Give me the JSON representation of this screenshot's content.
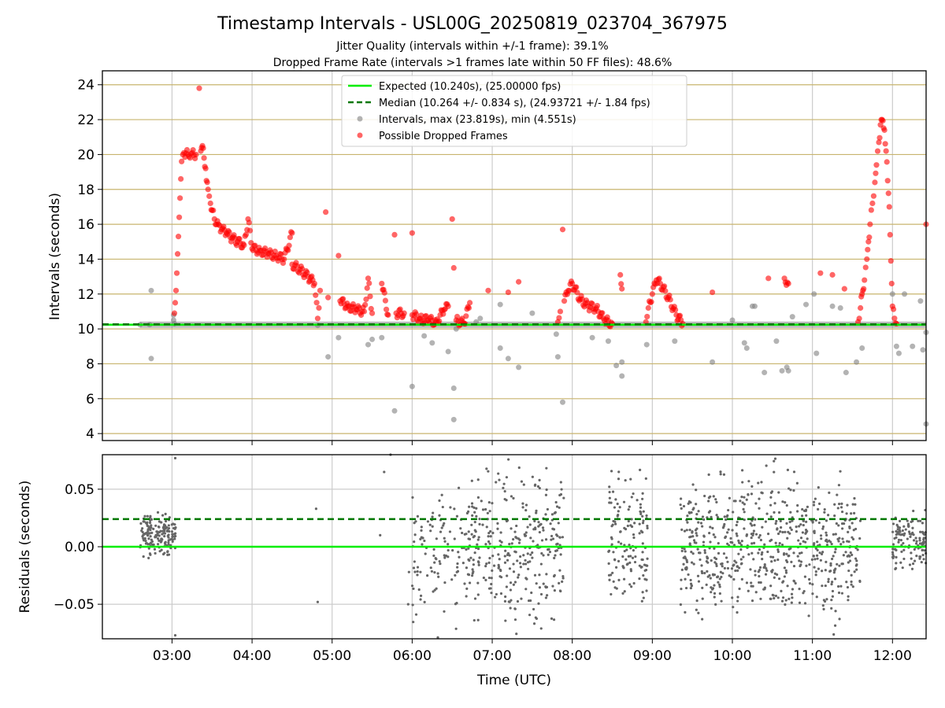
{
  "figure": {
    "title": "Timestamp Intervals - USL00G_20250819_023704_367975",
    "subtitle_1": "Jitter Quality (intervals within +/-1 frame): 39.1%",
    "subtitle_2": "Dropped Frame Rate (intervals >1 frames late within 50 FF files): 48.6%"
  },
  "colors": {
    "expected": "#00ee00",
    "median": "#007700",
    "intervals": "#808080",
    "dropped": "#ff0000",
    "hgrid": "#c8b46e",
    "vgrid": "#cccccc"
  },
  "chart_data": [
    {
      "type": "scatter",
      "xlabel": "",
      "ylabel": "Intervals (seconds)",
      "xlim": [
        2.13,
        12.42
      ],
      "ylim": [
        3.6,
        24.8
      ],
      "x_ticks": [
        3,
        4,
        5,
        6,
        7,
        8,
        9,
        10,
        11,
        12
      ],
      "y_ticks": [
        4,
        6,
        8,
        10,
        12,
        14,
        16,
        18,
        20,
        22,
        24
      ],
      "y_tick_labels": [
        "4",
        "6",
        "8",
        "10",
        "12",
        "14",
        "16",
        "18",
        "20",
        "22",
        "24"
      ],
      "grid": "on",
      "legend_position": "upper-center",
      "legend": [
        "Expected (10.240s), (25.00000 fps)",
        "Median (10.264 +/- 0.834 s), (24.93721 +/- 1.84 fps)",
        "Intervals, max (23.819s), min (4.551s)",
        "Possible Dropped Frames"
      ],
      "reference_lines": {
        "expected": 10.24,
        "median": 10.264
      },
      "baseline_band": {
        "x_range": [
          2.6,
          12.42
        ],
        "y": 10.24
      },
      "series": [
        {
          "name": "Intervals, max (23.819s), min (4.551s)",
          "points": [
            [
              2.6,
              10.24
            ],
            [
              2.72,
              10.24
            ],
            [
              2.74,
              12.2
            ],
            [
              2.74,
              8.3
            ],
            [
              3.02,
              10.8
            ],
            [
              3.02,
              10.5
            ],
            [
              3.03,
              10.3
            ],
            [
              4.82,
              10.2
            ],
            [
              4.95,
              8.4
            ],
            [
              5.08,
              9.5
            ],
            [
              5.45,
              9.1
            ],
            [
              5.5,
              9.4
            ],
            [
              5.62,
              9.5
            ],
            [
              5.78,
              5.3
            ],
            [
              6.0,
              6.7
            ],
            [
              6.15,
              9.6
            ],
            [
              6.25,
              9.2
            ],
            [
              6.45,
              8.7
            ],
            [
              6.52,
              6.6
            ],
            [
              6.52,
              4.8
            ],
            [
              6.55,
              10.0
            ],
            [
              6.8,
              10.4
            ],
            [
              6.85,
              10.6
            ],
            [
              7.1,
              11.4
            ],
            [
              7.1,
              8.9
            ],
            [
              7.2,
              8.3
            ],
            [
              7.33,
              7.8
            ],
            [
              7.5,
              10.9
            ],
            [
              7.8,
              9.7
            ],
            [
              7.82,
              8.4
            ],
            [
              7.88,
              5.8
            ],
            [
              8.25,
              9.5
            ],
            [
              8.45,
              9.3
            ],
            [
              8.55,
              7.9
            ],
            [
              8.62,
              7.3
            ],
            [
              8.62,
              8.1
            ],
            [
              8.93,
              9.1
            ],
            [
              9.28,
              9.3
            ],
            [
              9.75,
              8.1
            ],
            [
              10.0,
              10.5
            ],
            [
              10.15,
              9.2
            ],
            [
              10.18,
              8.9
            ],
            [
              10.25,
              11.3
            ],
            [
              10.28,
              11.3
            ],
            [
              10.4,
              7.5
            ],
            [
              10.55,
              9.3
            ],
            [
              10.62,
              7.6
            ],
            [
              10.68,
              7.8
            ],
            [
              10.7,
              7.6
            ],
            [
              10.75,
              10.7
            ],
            [
              10.92,
              11.4
            ],
            [
              11.02,
              12.0
            ],
            [
              11.05,
              8.6
            ],
            [
              11.25,
              11.3
            ],
            [
              11.35,
              11.2
            ],
            [
              11.42,
              7.5
            ],
            [
              11.55,
              8.1
            ],
            [
              11.62,
              8.9
            ],
            [
              12.0,
              12.0
            ],
            [
              12.05,
              9.0
            ],
            [
              12.08,
              8.6
            ],
            [
              12.15,
              12.0
            ],
            [
              12.25,
              9.0
            ],
            [
              12.35,
              11.6
            ],
            [
              12.38,
              8.8
            ],
            [
              12.42,
              4.55
            ],
            [
              12.42,
              9.8
            ]
          ]
        },
        {
          "name": "Possible Dropped Frames",
          "points": [
            [
              3.03,
              10.9
            ],
            [
              3.04,
              11.5
            ],
            [
              3.05,
              12.2
            ],
            [
              3.06,
              13.2
            ],
            [
              3.07,
              14.3
            ],
            [
              3.08,
              15.3
            ],
            [
              3.09,
              16.4
            ],
            [
              3.1,
              17.5
            ],
            [
              3.11,
              18.6
            ],
            [
              3.12,
              19.6
            ],
            [
              3.15,
              20.1
            ],
            [
              3.2,
              20.0
            ],
            [
              3.25,
              20.1
            ],
            [
              3.3,
              20.0
            ],
            [
              3.34,
              23.8
            ],
            [
              3.36,
              20.2
            ],
            [
              3.38,
              20.5
            ],
            [
              3.4,
              19.8
            ],
            [
              3.42,
              19.2
            ],
            [
              3.43,
              18.5
            ],
            [
              3.45,
              18.0
            ],
            [
              3.48,
              17.2
            ],
            [
              3.5,
              16.8
            ],
            [
              3.53,
              16.3
            ],
            [
              3.58,
              16.0
            ],
            [
              3.62,
              15.7
            ],
            [
              3.68,
              15.5
            ],
            [
              3.75,
              15.2
            ],
            [
              3.82,
              15.0
            ],
            [
              3.9,
              14.8
            ],
            [
              3.95,
              16.3
            ],
            [
              4.0,
              14.6
            ],
            [
              4.1,
              14.5
            ],
            [
              4.2,
              14.3
            ],
            [
              4.3,
              14.2
            ],
            [
              4.4,
              14.0
            ],
            [
              4.5,
              15.5
            ],
            [
              4.5,
              13.7
            ],
            [
              4.6,
              13.4
            ],
            [
              4.7,
              13.0
            ],
            [
              4.78,
              12.6
            ],
            [
              4.82,
              10.6
            ],
            [
              4.85,
              12.2
            ],
            [
              4.92,
              16.7
            ],
            [
              4.95,
              11.8
            ],
            [
              5.08,
              14.2
            ],
            [
              5.1,
              11.6
            ],
            [
              5.2,
              11.3
            ],
            [
              5.3,
              11.1
            ],
            [
              5.4,
              11.0
            ],
            [
              5.45,
              12.9
            ],
            [
              5.5,
              10.9
            ],
            [
              5.62,
              12.6
            ],
            [
              5.7,
              10.8
            ],
            [
              5.78,
              15.4
            ],
            [
              5.8,
              10.9
            ],
            [
              5.9,
              10.9
            ],
            [
              6.0,
              15.5
            ],
            [
              6.0,
              10.8
            ],
            [
              6.1,
              10.6
            ],
            [
              6.2,
              10.5
            ],
            [
              6.3,
              10.4
            ],
            [
              6.4,
              11.1
            ],
            [
              6.45,
              11.3
            ],
            [
              6.5,
              16.3
            ],
            [
              6.52,
              13.5
            ],
            [
              6.55,
              10.5
            ],
            [
              6.65,
              10.3
            ],
            [
              6.72,
              11.5
            ],
            [
              6.95,
              12.2
            ],
            [
              7.2,
              12.1
            ],
            [
              7.33,
              12.7
            ],
            [
              7.82,
              10.4
            ],
            [
              7.85,
              11.0
            ],
            [
              7.88,
              15.7
            ],
            [
              7.9,
              11.6
            ],
            [
              7.95,
              12.2
            ],
            [
              8.0,
              12.6
            ],
            [
              8.1,
              11.7
            ],
            [
              8.2,
              11.3
            ],
            [
              8.3,
              11.2
            ],
            [
              8.4,
              10.5
            ],
            [
              8.5,
              10.3
            ],
            [
              8.6,
              13.1
            ],
            [
              8.62,
              12.3
            ],
            [
              8.92,
              10.4
            ],
            [
              8.95,
              11.2
            ],
            [
              9.0,
              12.0
            ],
            [
              9.05,
              12.8
            ],
            [
              9.1,
              12.6
            ],
            [
              9.2,
              11.8
            ],
            [
              9.3,
              10.8
            ],
            [
              9.38,
              10.3
            ],
            [
              9.75,
              12.1
            ],
            [
              10.45,
              12.9
            ],
            [
              10.65,
              12.9
            ],
            [
              10.7,
              12.6
            ],
            [
              11.1,
              13.2
            ],
            [
              11.25,
              13.1
            ],
            [
              11.4,
              12.3
            ],
            [
              11.57,
              10.4
            ],
            [
              11.6,
              11.2
            ],
            [
              11.62,
              12.0
            ],
            [
              11.65,
              12.8
            ],
            [
              11.68,
              14.0
            ],
            [
              11.7,
              15.0
            ],
            [
              11.72,
              16.0
            ],
            [
              11.75,
              17.2
            ],
            [
              11.78,
              18.4
            ],
            [
              11.8,
              19.4
            ],
            [
              11.83,
              20.7
            ],
            [
              11.85,
              21.7
            ],
            [
              11.87,
              22.0
            ],
            [
              11.9,
              21.4
            ],
            [
              11.92,
              20.2
            ],
            [
              11.94,
              18.5
            ],
            [
              11.96,
              17.0
            ],
            [
              11.97,
              15.4
            ],
            [
              11.98,
              13.9
            ],
            [
              11.99,
              12.6
            ],
            [
              12.0,
              11.3
            ],
            [
              12.05,
              10.3
            ],
            [
              12.42,
              16.0
            ]
          ]
        }
      ]
    },
    {
      "type": "scatter",
      "xlabel": "Time (UTC)",
      "ylabel": "Residuals (seconds)",
      "xlim": [
        2.13,
        12.42
      ],
      "ylim": [
        -0.08,
        0.08
      ],
      "x_ticks": [
        3,
        4,
        5,
        6,
        7,
        8,
        9,
        10,
        11,
        12
      ],
      "x_tick_labels": [
        "03:00",
        "04:00",
        "05:00",
        "06:00",
        "07:00",
        "08:00",
        "09:00",
        "10:00",
        "11:00",
        "12:00"
      ],
      "y_ticks": [
        -0.05,
        0,
        0.05
      ],
      "y_tick_labels": [
        "−0.05",
        "0.00",
        "0.05"
      ],
      "grid": "on",
      "reference_lines": {
        "expected": 0.0,
        "median": 0.024
      },
      "residual_clusters": [
        {
          "x_range": [
            2.6,
            3.05
          ],
          "y_mean": 0.01,
          "y_spread": 0.045,
          "count": 170
        },
        {
          "x_range": [
            6.0,
            6.6
          ],
          "y_mean": -0.005,
          "y_spread": 0.16,
          "count": 95
        },
        {
          "x_range": [
            6.6,
            7.9
          ],
          "y_mean": 0.0,
          "y_spread": 0.16,
          "count": 330
        },
        {
          "x_range": [
            8.45,
            8.95
          ],
          "y_mean": 0.0,
          "y_spread": 0.16,
          "count": 140
        },
        {
          "x_range": [
            9.35,
            11.6
          ],
          "y_mean": 0.0,
          "y_spread": 0.16,
          "count": 650
        },
        {
          "x_range": [
            12.0,
            12.42
          ],
          "y_mean": 0.005,
          "y_spread": 0.06,
          "count": 120
        }
      ],
      "residual_points": [
        [
          3.04,
          0.077
        ],
        [
          3.04,
          -0.077
        ],
        [
          4.8,
          0.033
        ],
        [
          4.82,
          -0.048
        ],
        [
          5.6,
          0.01
        ],
        [
          5.65,
          0.065
        ],
        [
          5.73,
          0.08
        ],
        [
          5.95,
          -0.05
        ],
        [
          5.96,
          -0.022
        ]
      ]
    }
  ]
}
